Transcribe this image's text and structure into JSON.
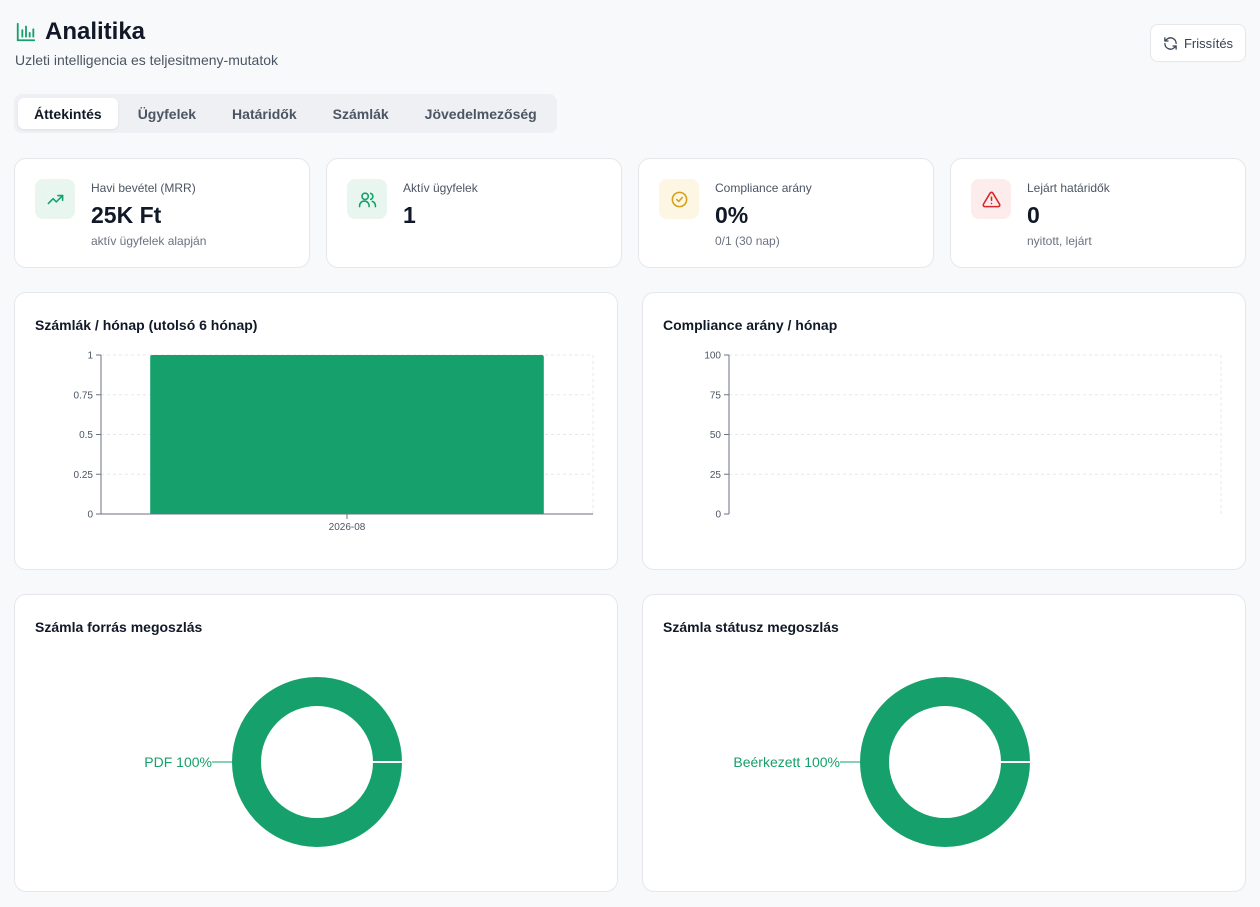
{
  "header": {
    "title": "Analitika",
    "subtitle": "Uzleti intelligencia es teljesitmeny-mutatok",
    "icon": "bar-chart-icon",
    "refresh_label": "Frissítés"
  },
  "tabs": [
    {
      "label": "Áttekintés",
      "active": true
    },
    {
      "label": "Ügyfelek",
      "active": false
    },
    {
      "label": "Határidők",
      "active": false
    },
    {
      "label": "Számlák",
      "active": false
    },
    {
      "label": "Jövedelmezőség",
      "active": false
    }
  ],
  "kpis": [
    {
      "label": "Havi bevétel (MRR)",
      "value": "25K Ft",
      "sub": "aktív ügyfelek alapján",
      "icon": "trending-up-icon",
      "color": "#16a06b",
      "bg": "#e8f6ef"
    },
    {
      "label": "Aktív ügyfelek",
      "value": "1",
      "sub": "",
      "icon": "users-icon",
      "color": "#16a06b",
      "bg": "#e8f6ef"
    },
    {
      "label": "Compliance arány",
      "value": "0%",
      "sub": "0/1 (30 nap)",
      "icon": "check-circle-icon",
      "color": "#d4a017",
      "bg": "#fdf6e3"
    },
    {
      "label": "Lejárt határidők",
      "value": "0",
      "sub": "nyitott, lejárt",
      "icon": "alert-triangle-icon",
      "color": "#dc2626",
      "bg": "#fdecec"
    }
  ],
  "colors": {
    "accent": "#16a06b"
  },
  "chart_data": [
    {
      "type": "bar",
      "title": "Számlák / hónap (utolsó 6 hónap)",
      "categories": [
        "2026-08"
      ],
      "values": [
        1
      ],
      "ylim": [
        0,
        1
      ],
      "yticks": [
        "0",
        "0.25",
        "0.5",
        "0.75",
        "1"
      ],
      "grid": true
    },
    {
      "type": "line",
      "title": "Compliance arány / hónap",
      "categories": [],
      "values": [],
      "ylim": [
        0,
        100
      ],
      "yticks": [
        "0",
        "25",
        "50",
        "75",
        "100"
      ],
      "grid": true
    },
    {
      "type": "pie",
      "title": "Számla forrás megoszlás",
      "slices": [
        {
          "label": "PDF 100%",
          "name": "PDF",
          "value": 100
        }
      ]
    },
    {
      "type": "pie",
      "title": "Számla státusz megoszlás",
      "slices": [
        {
          "label": "Beérkezett 100%",
          "name": "Beérkezett",
          "value": 100
        }
      ]
    }
  ]
}
